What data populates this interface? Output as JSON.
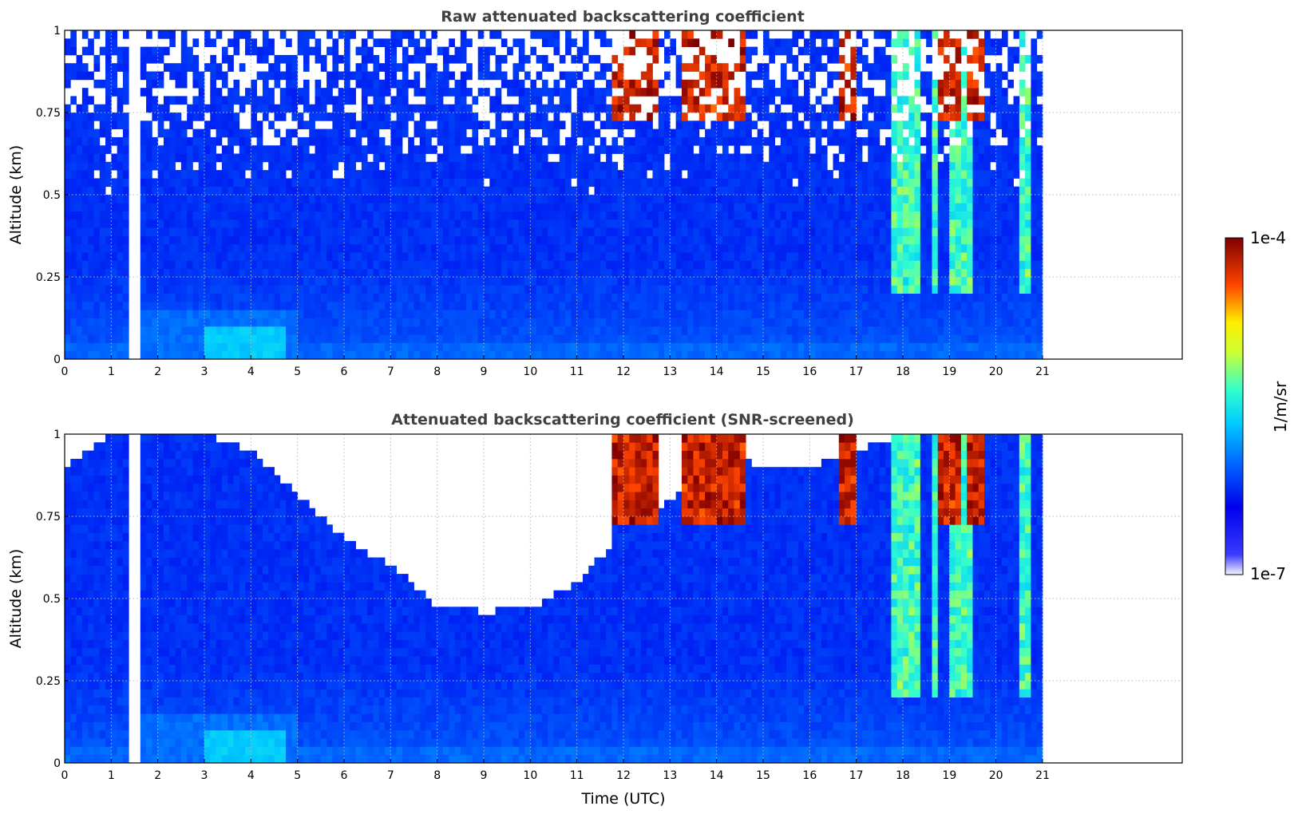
{
  "chart_data": [
    {
      "type": "heatmap",
      "title": "Raw attenuated backscattering coefficient",
      "xlabel": "",
      "ylabel": "Altitude (km)",
      "xlim": [
        0,
        24
      ],
      "ylim": [
        0,
        1
      ],
      "x_ticks": [
        "0",
        "1",
        "2",
        "3",
        "4",
        "5",
        "6",
        "7",
        "8",
        "9",
        "10",
        "11",
        "12",
        "13",
        "14",
        "15",
        "16",
        "17",
        "18",
        "19",
        "20",
        "21"
      ],
      "y_ticks": [
        "0",
        "0.25",
        "0.5",
        "0.75",
        "1"
      ],
      "y_tick_values": [
        0,
        0.25,
        0.5,
        0.75,
        1
      ],
      "data_extent_x": [
        0,
        21
      ],
      "gap_at_x": 1.5,
      "grid": true,
      "features": {
        "aerosol_layer": {
          "x": [
            3.0,
            4.8
          ],
          "y": [
            0,
            0.1
          ],
          "level": 0.45
        },
        "high_clouds": [
          [
            11.8,
            12.7
          ],
          [
            13.2,
            14.6
          ],
          [
            16.6,
            17.0
          ],
          [
            18.8,
            19.2
          ],
          [
            19.4,
            19.8
          ]
        ],
        "precipitation_streaks": [
          [
            17.8,
            18.4
          ],
          [
            18.6,
            18.8
          ],
          [
            19.0,
            19.5
          ],
          [
            20.5,
            20.7
          ]
        ]
      }
    },
    {
      "type": "heatmap",
      "title": "Attenuated backscattering coefficient (SNR-screened)",
      "xlabel": "Time (UTC)",
      "ylabel": "Altitude (km)",
      "xlim": [
        0,
        24
      ],
      "ylim": [
        0,
        1
      ],
      "x_ticks": [
        "0",
        "1",
        "2",
        "3",
        "4",
        "5",
        "6",
        "7",
        "8",
        "9",
        "10",
        "11",
        "12",
        "13",
        "14",
        "15",
        "16",
        "17",
        "18",
        "19",
        "20",
        "21"
      ],
      "y_ticks": [
        "0",
        "0.25",
        "0.5",
        "0.75",
        "1"
      ],
      "y_tick_values": [
        0,
        0.25,
        0.5,
        0.75,
        1
      ],
      "data_extent_x": [
        0,
        21
      ],
      "gap_at_x": 1.5,
      "grid": true,
      "screened_boundary_km": [
        [
          0,
          0.9
        ],
        [
          1,
          1
        ],
        [
          2,
          1
        ],
        [
          3,
          1
        ],
        [
          4,
          0.95
        ],
        [
          5,
          0.82
        ],
        [
          6,
          0.68
        ],
        [
          7,
          0.6
        ],
        [
          8,
          0.48
        ],
        [
          9,
          0.46
        ],
        [
          10,
          0.47
        ],
        [
          11,
          0.55
        ],
        [
          12,
          0.7
        ],
        [
          13,
          0.8
        ],
        [
          14,
          0.95
        ],
        [
          15,
          0.9
        ],
        [
          16,
          0.9
        ],
        [
          17,
          0.95
        ],
        [
          18,
          1
        ],
        [
          21,
          1
        ]
      ]
    }
  ],
  "colorbar": {
    "label": "1/m/sr",
    "max_label": "1e-4",
    "min_label": "1e-7",
    "scale": "log",
    "range": [
      1e-07,
      0.0001
    ],
    "colormap": "jet"
  }
}
